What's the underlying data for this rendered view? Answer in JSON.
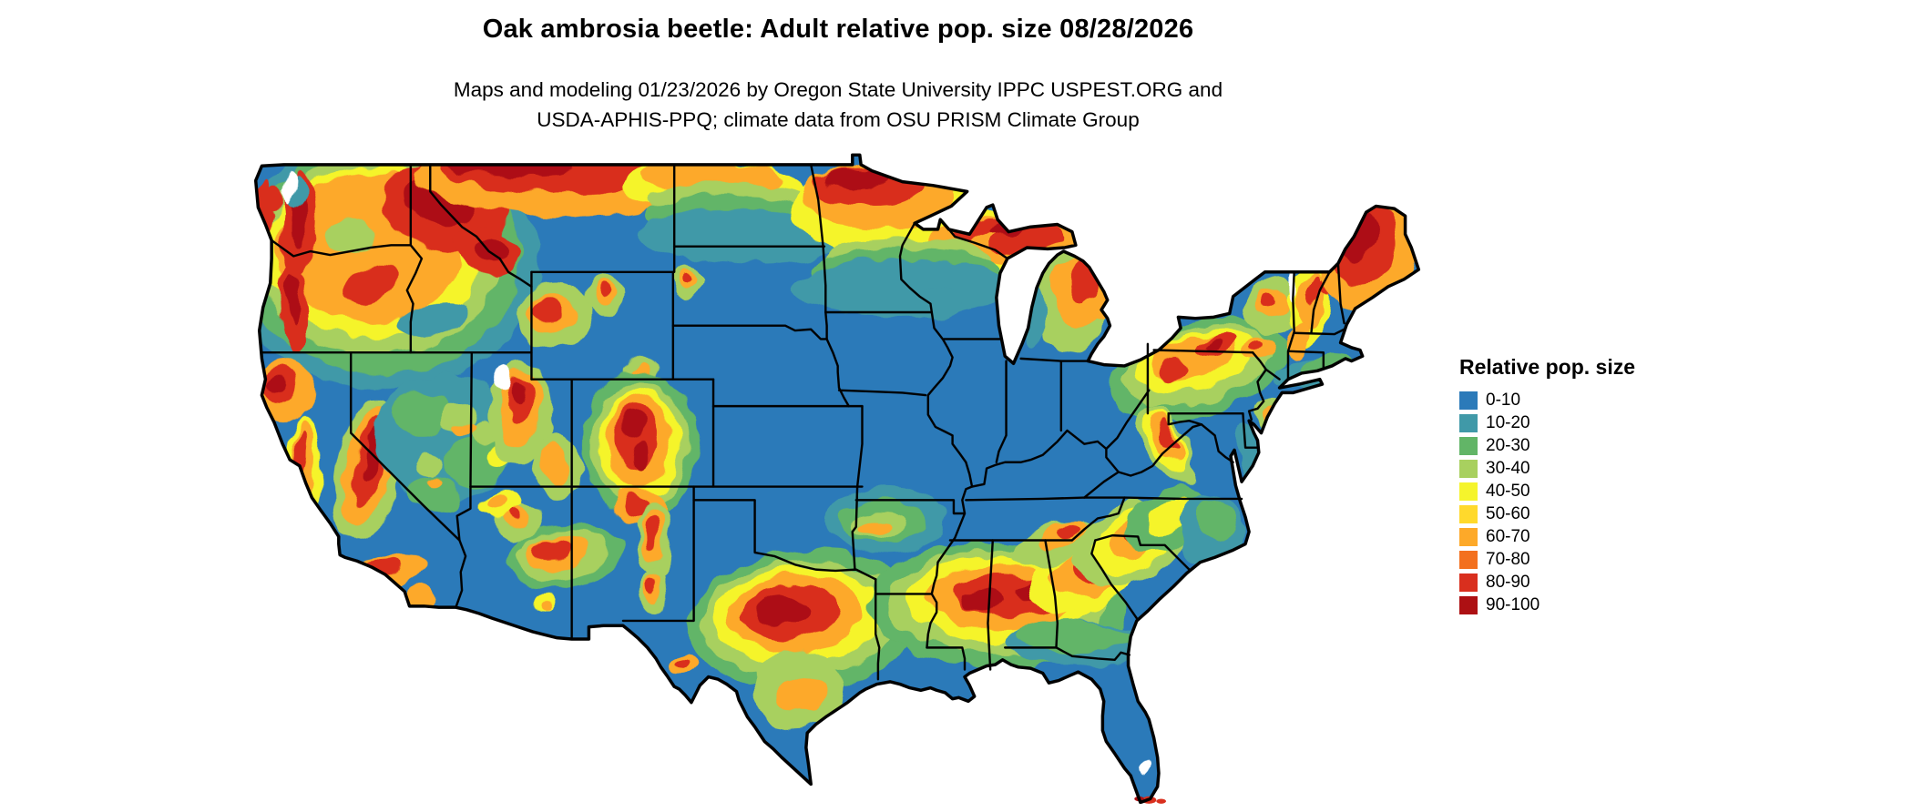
{
  "title": "Oak ambrosia beetle: Adult relative pop. size 08/28/2026",
  "subtitle_line1": "Maps and modeling 01/23/2026 by Oregon State University IPPC USPEST.ORG and",
  "subtitle_line2": "USDA-APHIS-PPQ; climate data from OSU PRISM Climate Group",
  "map": {
    "region": "Continental United States",
    "border_color": "#000000",
    "background_color": "#ffffff"
  },
  "legend": {
    "title": "Relative pop. size",
    "items": [
      {
        "label": "0-10",
        "color": "#2b7ab9"
      },
      {
        "label": "10-20",
        "color": "#4099a8"
      },
      {
        "label": "20-30",
        "color": "#62b567"
      },
      {
        "label": "30-40",
        "color": "#a8d05f"
      },
      {
        "label": "40-50",
        "color": "#f5f42c"
      },
      {
        "label": "50-60",
        "color": "#ffd92c"
      },
      {
        "label": "60-70",
        "color": "#fda929"
      },
      {
        "label": "70-80",
        "color": "#f3701e"
      },
      {
        "label": "80-90",
        "color": "#d92f1e"
      },
      {
        "label": "90-100",
        "color": "#ad1013"
      }
    ]
  }
}
